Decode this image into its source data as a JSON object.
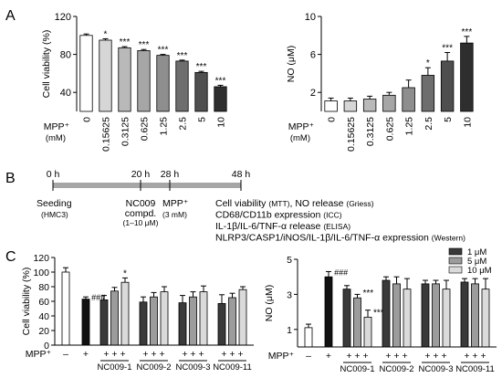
{
  "panel_labels": {
    "a": "A",
    "b": "B",
    "c": "C"
  },
  "colors": {
    "white": "#ffffff",
    "g1": "#d6d6d6",
    "g2": "#b9b9b9",
    "g3": "#a6a6a6",
    "g4": "#8e8e8e",
    "g5": "#6e6e6e",
    "g6": "#4f4f4f",
    "g7": "#2e2e2e",
    "black": "#111111",
    "nc_1uM": "#3a3a3a",
    "nc_5uM": "#9c9c9c",
    "nc_10uM": "#dadada",
    "timeline_bar": "#a6a6a6"
  },
  "chart_data": [
    {
      "id": "A-left",
      "type": "bar",
      "ylabel": "Cell viability (%)",
      "ylim": [
        20,
        120
      ],
      "yticks": [
        40,
        80,
        120
      ],
      "xlabel_prefix": "MPP⁺",
      "xlabel_unit": "(mM)",
      "categories": [
        "0",
        "0.15625",
        "0.3125",
        "0.625",
        "1.25",
        "2.5",
        "5",
        "10"
      ],
      "values": [
        100,
        95,
        87,
        84,
        79,
        73,
        61,
        46
      ],
      "errors": [
        1.5,
        1.5,
        1.2,
        1.2,
        1.0,
        1.0,
        1.2,
        1.5
      ],
      "significance": [
        "",
        "*",
        "***",
        "***",
        "***",
        "***",
        "***",
        "***"
      ],
      "fills": [
        "white",
        "g1",
        "g2",
        "g3",
        "g4",
        "g5",
        "g6",
        "g7"
      ]
    },
    {
      "id": "A-right",
      "type": "bar",
      "ylabel": "NO (μM)",
      "ylim": [
        0,
        10
      ],
      "yticks": [
        2,
        6,
        10
      ],
      "xlabel_prefix": "MPP⁺",
      "xlabel_unit": "(mM)",
      "categories": [
        "0",
        "0.15625",
        "0.3125",
        "0.625",
        "1.25",
        "2.5",
        "5",
        "10"
      ],
      "values": [
        1.1,
        1.1,
        1.3,
        1.7,
        2.5,
        3.8,
        5.3,
        7.2
      ],
      "errors": [
        0.3,
        0.3,
        0.3,
        0.3,
        0.8,
        0.8,
        0.9,
        0.7
      ],
      "significance": [
        "",
        "",
        "",
        "",
        "",
        "*",
        "***",
        "***"
      ],
      "fills": [
        "white",
        "g1",
        "g2",
        "g3",
        "g4",
        "g5",
        "g6",
        "g7"
      ]
    },
    {
      "id": "C-left",
      "type": "bar",
      "ylabel": "Cell viability (%)",
      "ylim": [
        0,
        120
      ],
      "yticks": [
        0,
        20,
        40,
        60,
        80,
        100,
        120
      ],
      "mpp_label": "MPP⁺",
      "groups": [
        {
          "label": "",
          "mpp": "–",
          "bars": [
            {
              "value": 100,
              "error": 6,
              "fill": "white"
            }
          ]
        },
        {
          "label": "",
          "mpp": "+",
          "sig_top": "###",
          "bars": [
            {
              "value": 63,
              "error": 3,
              "fill": "black"
            }
          ]
        },
        {
          "label": "NC009-1",
          "mpp": "+ + +",
          "bars": [
            {
              "value": 62,
              "error": 6,
              "fill": "nc_1uM"
            },
            {
              "value": 74,
              "error": 5,
              "fill": "nc_5uM"
            },
            {
              "value": 86,
              "error": 6,
              "fill": "nc_10uM",
              "sig": "*"
            }
          ]
        },
        {
          "label": "NC009-2",
          "mpp": "+ + +",
          "bars": [
            {
              "value": 59,
              "error": 7,
              "fill": "nc_1uM"
            },
            {
              "value": 66,
              "error": 6,
              "fill": "nc_5uM"
            },
            {
              "value": 73,
              "error": 7,
              "fill": "nc_10uM"
            }
          ]
        },
        {
          "label": "NC009-3",
          "mpp": "+ + +",
          "bars": [
            {
              "value": 58,
              "error": 10,
              "fill": "nc_1uM"
            },
            {
              "value": 66,
              "error": 7,
              "fill": "nc_5uM"
            },
            {
              "value": 73,
              "error": 8,
              "fill": "nc_10uM"
            }
          ]
        },
        {
          "label": "NC009-11",
          "mpp": "+ + +",
          "bars": [
            {
              "value": 57,
              "error": 12,
              "fill": "nc_1uM"
            },
            {
              "value": 65,
              "error": 6,
              "fill": "nc_5uM"
            },
            {
              "value": 76,
              "error": 4,
              "fill": "nc_10uM"
            }
          ]
        }
      ]
    },
    {
      "id": "C-right",
      "type": "bar",
      "ylabel": "NO (μM)",
      "ylim": [
        0,
        5
      ],
      "yticks": [
        1,
        3,
        5
      ],
      "mpp_label": "MPP⁺",
      "legend": {
        "position": "top-right",
        "items": [
          {
            "label": "1 μM",
            "fill": "nc_1uM"
          },
          {
            "label": "5 μM",
            "fill": "nc_5uM"
          },
          {
            "label": "10 μM",
            "fill": "nc_10uM"
          }
        ]
      },
      "groups": [
        {
          "label": "",
          "mpp": "–",
          "bars": [
            {
              "value": 1.1,
              "error": 0.2,
              "fill": "white"
            }
          ]
        },
        {
          "label": "",
          "mpp": "+",
          "sig_top": "###",
          "bars": [
            {
              "value": 4.0,
              "error": 0.3,
              "fill": "black"
            }
          ]
        },
        {
          "label": "NC009-1",
          "mpp": "+ + +",
          "bars": [
            {
              "value": 3.3,
              "error": 0.2,
              "fill": "nc_1uM"
            },
            {
              "value": 2.8,
              "error": 0.2,
              "fill": "nc_5uM",
              "sig": "***"
            },
            {
              "value": 1.7,
              "error": 0.4,
              "fill": "nc_10uM",
              "sig": "***"
            }
          ]
        },
        {
          "label": "NC009-2",
          "mpp": "+ + +",
          "bars": [
            {
              "value": 3.8,
              "error": 0.2,
              "fill": "nc_1uM"
            },
            {
              "value": 3.6,
              "error": 0.4,
              "fill": "nc_5uM"
            },
            {
              "value": 3.3,
              "error": 0.6,
              "fill": "nc_10uM"
            }
          ]
        },
        {
          "label": "NC009-3",
          "mpp": "+ + +",
          "bars": [
            {
              "value": 3.6,
              "error": 0.2,
              "fill": "nc_1uM"
            },
            {
              "value": 3.6,
              "error": 0.2,
              "fill": "nc_5uM"
            },
            {
              "value": 3.3,
              "error": 0.5,
              "fill": "nc_10uM"
            }
          ]
        },
        {
          "label": "NC009-11",
          "mpp": "+ + +",
          "bars": [
            {
              "value": 3.7,
              "error": 0.2,
              "fill": "nc_1uM"
            },
            {
              "value": 3.6,
              "error": 0.3,
              "fill": "nc_5uM"
            },
            {
              "value": 3.3,
              "error": 0.6,
              "fill": "nc_10uM"
            }
          ]
        }
      ]
    }
  ],
  "timeline": {
    "times": [
      "0 h",
      "20 h",
      "28 h",
      "48 h"
    ],
    "events": [
      {
        "title": "Seeding",
        "sub": "(HMC3)"
      },
      {
        "title": "NC009",
        "title2": "compd.",
        "sub": "(1–10 μM)"
      },
      {
        "title": "MPP⁺",
        "sub": "(3 mM)"
      }
    ],
    "readouts": [
      {
        "main": "Cell viability ",
        "small": "(MTT)",
        "main2": ", NO release ",
        "small2": "(Griess)"
      },
      {
        "main": "CD68/CD11b expression ",
        "small": "(ICC)"
      },
      {
        "main": "IL-1β/IL-6/TNF-α release ",
        "small": "(ELISA)"
      },
      {
        "main": "NLRP3/CASP1/iNOS/IL-1β/IL-6/TNF-α expression ",
        "small": "(Western)"
      }
    ]
  }
}
